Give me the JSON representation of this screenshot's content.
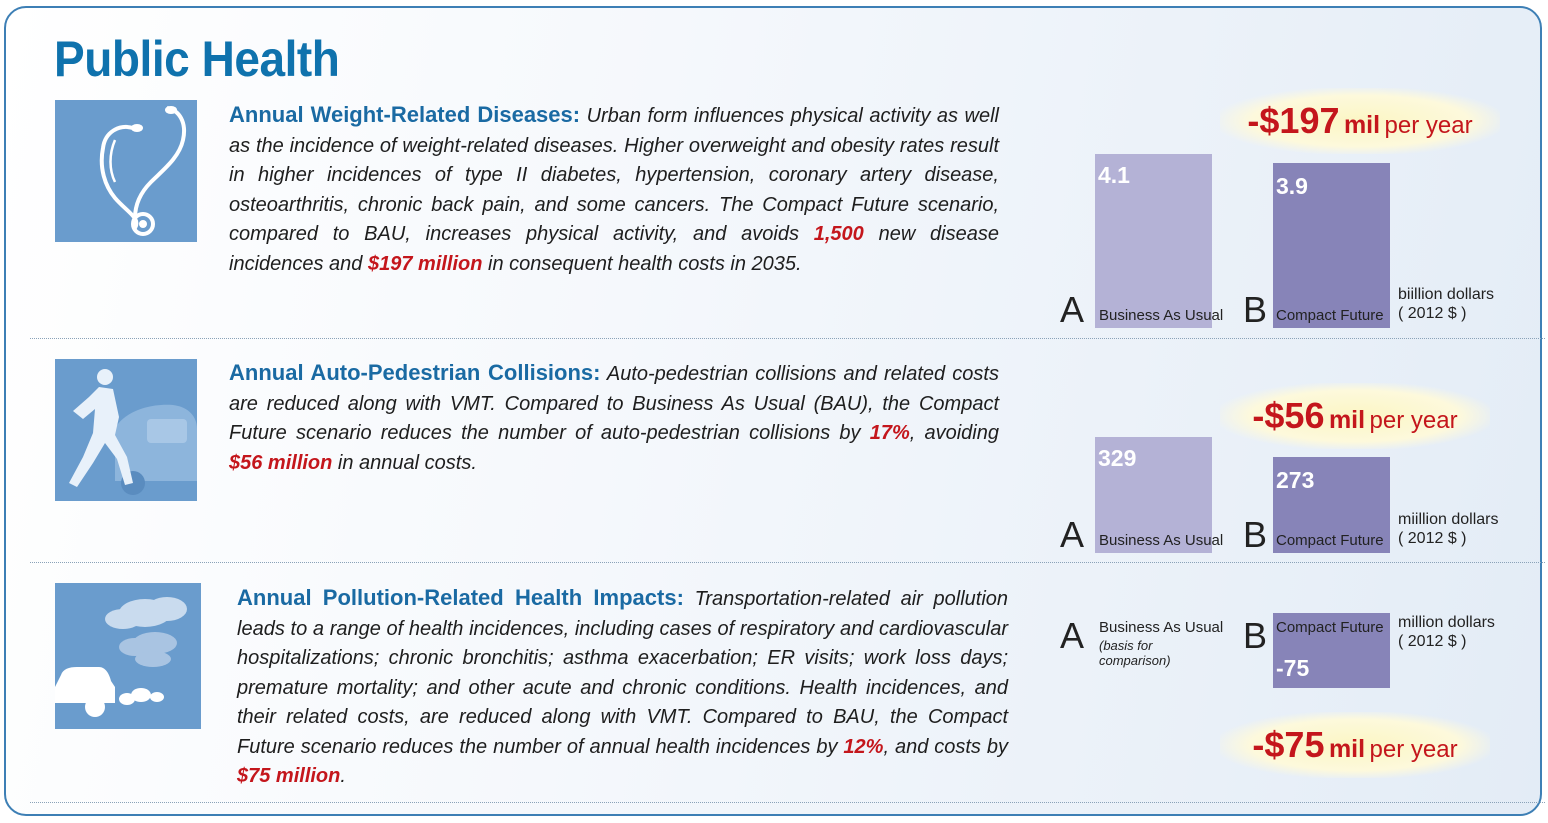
{
  "title": "Public Health",
  "sections": [
    {
      "heading": "Annual Weight-Related Diseases:",
      "text_parts": [
        " Urban form influences physical activity as well as the incidence of weight-related diseases. Higher overweight and obesity rates result in higher incidences of type II diabetes, hypertension, coronary artery disease, osteoarthritis, chronic back pain, and some cancers. The Compact Future scenario, compared to BAU, increases physical activity, and avoids ",
        "1,500",
        " new disease incidences and ",
        "$197 million",
        " in consequent health costs in 2035."
      ],
      "icon": "stethoscope-icon"
    },
    {
      "heading": "Annual Auto-Pedestrian Collisions:",
      "text_parts": [
        " Auto-pedestrian collisions and related costs are reduced along with VMT. Compared to Business As Usual (BAU), the Compact Future scenario reduces the number of auto-pedestrian collisions by ",
        "17%",
        ", avoiding ",
        "$56 million",
        " in annual costs."
      ],
      "icon": "pedestrian-car-icon"
    },
    {
      "heading": "Annual Pollution-Related Health Impacts:",
      "text_parts": [
        " Transportation-related air pollution leads to a range of health incidences, including cases of respiratory and cardiovascular hospitalizations; chronic bronchitis; asthma exacerbation; ER visits; work loss days; premature mortality; and other acute and chronic conditions. Health incidences, and their related costs, are reduced along with VMT. Compared to BAU, the Compact Future scenario reduces the number of annual health incidences by ",
        "12%",
        ", and costs by ",
        "$75 million",
        "."
      ],
      "icon": "car-exhaust-cloud-icon"
    }
  ],
  "colors": {
    "title": "#0f72ad",
    "heading": "#1a6aa3",
    "highlight": "#c4161c",
    "bar_a": "#b4b2d6",
    "bar_b": "#8784b8",
    "icon_bg": "#6a9ccd"
  },
  "chart_data": [
    {
      "type": "bar",
      "categories": [
        "Business As Usual",
        "Compact Future"
      ],
      "letters": [
        "A",
        "B"
      ],
      "values": [
        4.1,
        3.9
      ],
      "value_labels": [
        "4.1",
        "3.9"
      ],
      "unit": [
        "biillion dollars",
        "( 2012 $ )"
      ],
      "headline": {
        "amount": "-$197",
        "mil": "mil",
        "per": "per year"
      },
      "basis_note": "",
      "ylim": [
        0,
        4.2
      ]
    },
    {
      "type": "bar",
      "categories": [
        "Business As Usual",
        "Compact Future"
      ],
      "letters": [
        "A",
        "B"
      ],
      "values": [
        329,
        273
      ],
      "value_labels": [
        "329",
        "273"
      ],
      "unit": [
        "miillion dollars",
        "( 2012 $ )"
      ],
      "headline": {
        "amount": "-$56",
        "mil": "mil",
        "per": "per year"
      },
      "basis_note": "",
      "ylim": [
        0,
        335
      ]
    },
    {
      "type": "bar",
      "categories": [
        "Business As Usual",
        "Compact Future"
      ],
      "letters": [
        "A",
        "B"
      ],
      "values": [
        0,
        -75
      ],
      "value_labels": [
        "",
        "-75"
      ],
      "unit": [
        "million dollars",
        "( 2012 $ )"
      ],
      "headline": {
        "amount": "-$75",
        "mil": "mil",
        "per": "per year"
      },
      "basis_note": "(basis for comparison)",
      "ylim": [
        -75,
        0
      ]
    }
  ]
}
